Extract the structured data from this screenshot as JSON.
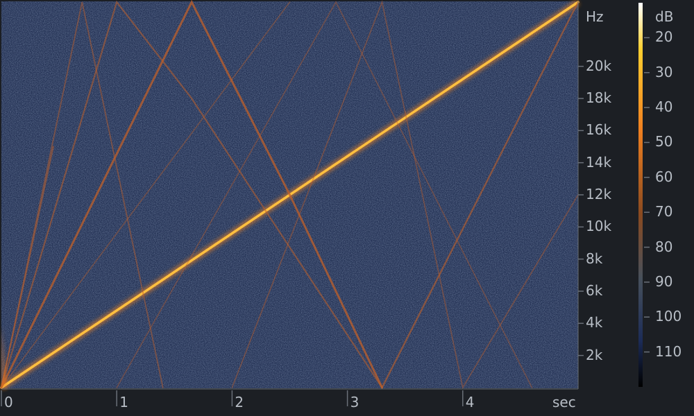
{
  "chart_data": {
    "type": "heatmap",
    "title": "",
    "xlabel": "sec",
    "ylabel": "Hz",
    "xlim": [
      0,
      5
    ],
    "ylim": [
      0,
      24000
    ],
    "x_ticks": [
      {
        "value": 0,
        "label": "0"
      },
      {
        "value": 1,
        "label": "1"
      },
      {
        "value": 2,
        "label": "2"
      },
      {
        "value": 3,
        "label": "3"
      },
      {
        "value": 4,
        "label": "4"
      }
    ],
    "y_ticks": [
      {
        "value": 2000,
        "label": "2k"
      },
      {
        "value": 4000,
        "label": "4k"
      },
      {
        "value": 6000,
        "label": "6k"
      },
      {
        "value": 8000,
        "label": "8k"
      },
      {
        "value": 10000,
        "label": "10k"
      },
      {
        "value": 12000,
        "label": "12k"
      },
      {
        "value": 14000,
        "label": "14k"
      },
      {
        "value": 16000,
        "label": "16k"
      },
      {
        "value": 18000,
        "label": "18k"
      },
      {
        "value": 20000,
        "label": "20k"
      }
    ],
    "colorbar": {
      "label": "dB",
      "ticks": [
        "20",
        "30",
        "40",
        "50",
        "60",
        "70",
        "80",
        "90",
        "100",
        "110"
      ],
      "range": [
        10,
        120
      ],
      "colors": [
        "#ffffff",
        "#ffd030",
        "#f08020",
        "#8a4a20",
        "#46505c",
        "#1c2c58",
        "#000000"
      ]
    },
    "series": [
      {
        "points": [
          [
            0,
            0
          ],
          [
            5,
            24000
          ]
        ],
        "level": 1.0
      },
      {
        "points": [
          [
            0,
            0
          ],
          [
            1.65,
            24000
          ],
          [
            2.5,
            12000
          ],
          [
            3.3,
            0
          ]
        ],
        "level": 0.5
      },
      {
        "points": [
          [
            0,
            0
          ],
          [
            1.0,
            24000
          ],
          [
            1.65,
            18000
          ],
          [
            3.3,
            0
          ]
        ],
        "level": 0.3
      },
      {
        "points": [
          [
            0,
            0
          ],
          [
            0.7,
            24000
          ],
          [
            1.4,
            0
          ]
        ],
        "level": 0.22
      },
      {
        "points": [
          [
            0,
            0
          ],
          [
            2.5,
            24000
          ]
        ],
        "level": 0.16
      },
      {
        "points": [
          [
            3.3,
            0
          ],
          [
            5,
            24000
          ]
        ],
        "level": 0.35
      },
      {
        "points": [
          [
            2.0,
            0
          ],
          [
            3.3,
            24000
          ],
          [
            4.0,
            0
          ],
          [
            5,
            12000
          ]
        ],
        "level": 0.18
      },
      {
        "points": [
          [
            1.0,
            0
          ],
          [
            2.9,
            24000
          ],
          [
            4.6,
            0
          ]
        ],
        "level": 0.15
      },
      {
        "points": [
          [
            0,
            0
          ],
          [
            0.45,
            15000
          ]
        ],
        "level": 0.28
      }
    ],
    "background": {
      "base_color": "#233154",
      "noise_color": "#3a4a70"
    }
  }
}
